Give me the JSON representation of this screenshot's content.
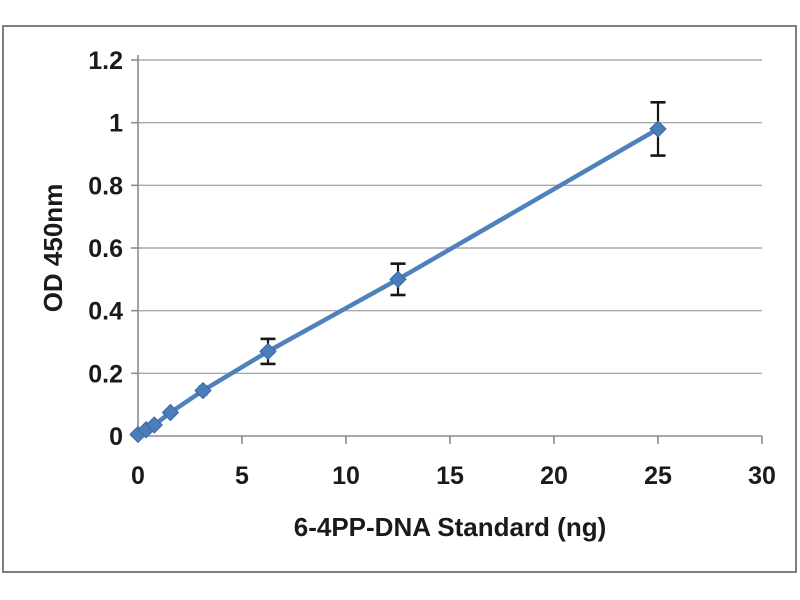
{
  "chart_data": {
    "type": "line",
    "title": "",
    "xlabel": "6-4PP-DNA Standard (ng)",
    "ylabel": "OD 450nm",
    "x": [
      0,
      0.39,
      0.78,
      1.56,
      3.125,
      6.25,
      12.5,
      25
    ],
    "y": [
      0.005,
      0.02,
      0.035,
      0.075,
      0.145,
      0.27,
      0.5,
      0.98
    ],
    "y_err": [
      0,
      0,
      0,
      0,
      0.012,
      0.04,
      0.05,
      0.085
    ],
    "xlim": [
      0,
      30
    ],
    "ylim": [
      0,
      1.2
    ],
    "x_tick_labels": [
      "0",
      "5",
      "10",
      "15",
      "20",
      "25",
      "30"
    ],
    "x_tick_values": [
      0,
      5,
      10,
      15,
      20,
      25,
      30
    ],
    "y_tick_labels": [
      "0",
      "0.2",
      "0.4",
      "0.6",
      "0.8",
      "1",
      "1.2"
    ],
    "y_tick_values": [
      0,
      0.2,
      0.4,
      0.6,
      0.8,
      1,
      1.2
    ],
    "grid": "horizontal-only",
    "legend": "none",
    "marker": "diamond",
    "colors": {
      "series": "#4f81bd",
      "marker_fill": "#4a7dba",
      "marker_edge": "#3a68a0",
      "error_bar": "#151515",
      "gridline": "#aaaaaa",
      "axis": "#8c8c8c",
      "text": "#1a1a1a",
      "frame_border": "#7f7f7f",
      "background": "#ffffff"
    }
  }
}
